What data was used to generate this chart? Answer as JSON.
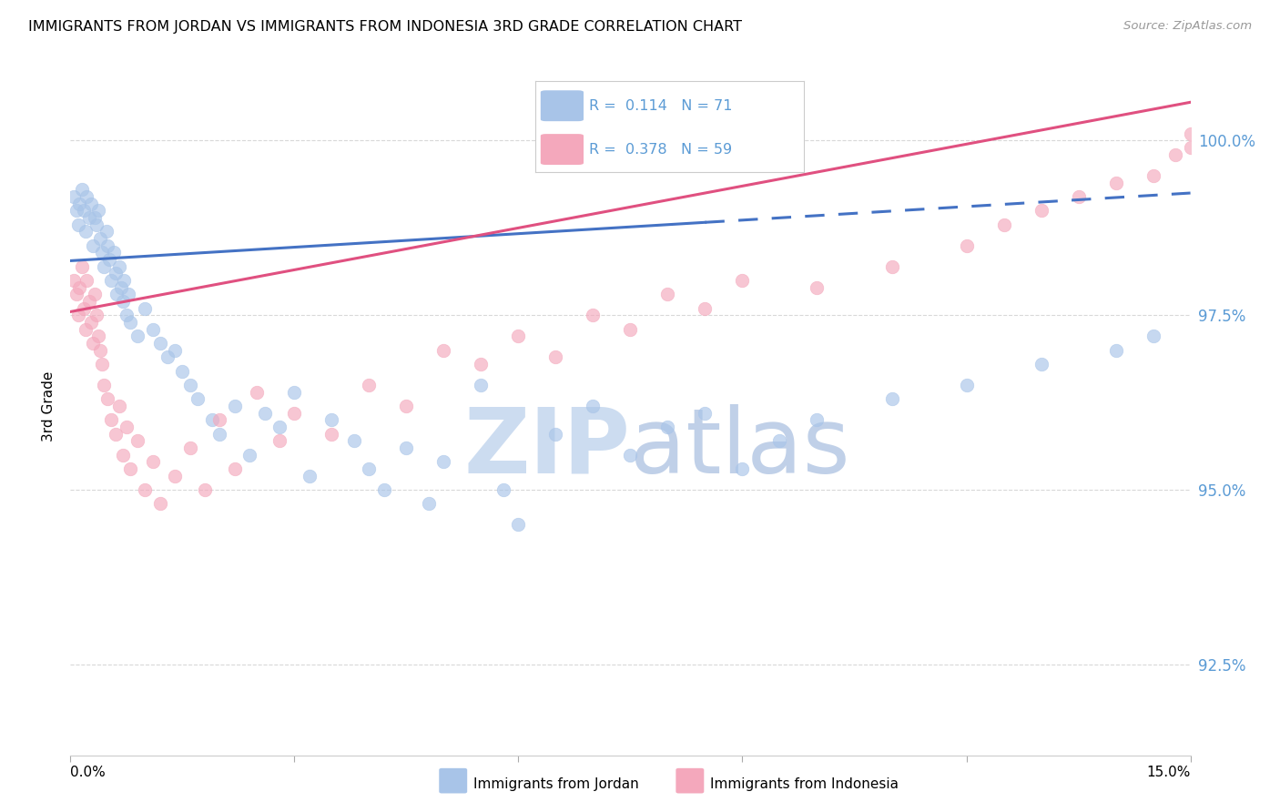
{
  "title": "IMMIGRANTS FROM JORDAN VS IMMIGRANTS FROM INDONESIA 3RD GRADE CORRELATION CHART",
  "source": "Source: ZipAtlas.com",
  "ylabel": "3rd Grade",
  "yaxis_values": [
    92.5,
    95.0,
    97.5,
    100.0
  ],
  "xlim": [
    0.0,
    15.0
  ],
  "ylim": [
    91.2,
    101.2
  ],
  "color_jordan": "#a8c4e8",
  "color_indonesia": "#f4a8bc",
  "color_jordan_line": "#4472c4",
  "color_indonesia_line": "#e05080",
  "watermark_zip_color": "#ccdcf0",
  "watermark_atlas_color": "#c0d0e8",
  "tick_color": "#5b9bd5",
  "grid_color": "#d8d8d8",
  "fig_bg": "#ffffff",
  "jordan_x": [
    0.05,
    0.08,
    0.1,
    0.12,
    0.15,
    0.18,
    0.2,
    0.22,
    0.25,
    0.28,
    0.3,
    0.32,
    0.35,
    0.38,
    0.4,
    0.42,
    0.45,
    0.48,
    0.5,
    0.52,
    0.55,
    0.58,
    0.6,
    0.62,
    0.65,
    0.68,
    0.7,
    0.72,
    0.75,
    0.78,
    0.8,
    0.9,
    1.0,
    1.1,
    1.2,
    1.3,
    1.4,
    1.5,
    1.6,
    1.7,
    1.9,
    2.0,
    2.2,
    2.4,
    2.6,
    2.8,
    3.0,
    3.2,
    3.5,
    3.8,
    4.0,
    4.2,
    4.5,
    4.8,
    5.0,
    5.5,
    5.8,
    6.0,
    6.5,
    7.0,
    7.5,
    8.0,
    8.5,
    9.0,
    9.5,
    10.0,
    11.0,
    12.0,
    13.0,
    14.0,
    14.5
  ],
  "jordan_y": [
    99.2,
    99.0,
    98.8,
    99.1,
    99.3,
    99.0,
    98.7,
    99.2,
    98.9,
    99.1,
    98.5,
    98.9,
    98.8,
    99.0,
    98.6,
    98.4,
    98.2,
    98.7,
    98.5,
    98.3,
    98.0,
    98.4,
    98.1,
    97.8,
    98.2,
    97.9,
    97.7,
    98.0,
    97.5,
    97.8,
    97.4,
    97.2,
    97.6,
    97.3,
    97.1,
    96.9,
    97.0,
    96.7,
    96.5,
    96.3,
    96.0,
    95.8,
    96.2,
    95.5,
    96.1,
    95.9,
    96.4,
    95.2,
    96.0,
    95.7,
    95.3,
    95.0,
    95.6,
    94.8,
    95.4,
    96.5,
    95.0,
    94.5,
    95.8,
    96.2,
    95.5,
    95.9,
    96.1,
    95.3,
    95.7,
    96.0,
    96.3,
    96.5,
    96.8,
    97.0,
    97.2
  ],
  "indonesia_x": [
    0.05,
    0.08,
    0.1,
    0.12,
    0.15,
    0.18,
    0.2,
    0.22,
    0.25,
    0.28,
    0.3,
    0.32,
    0.35,
    0.38,
    0.4,
    0.42,
    0.45,
    0.5,
    0.55,
    0.6,
    0.65,
    0.7,
    0.75,
    0.8,
    0.9,
    1.0,
    1.1,
    1.2,
    1.4,
    1.6,
    1.8,
    2.0,
    2.2,
    2.5,
    2.8,
    3.0,
    3.5,
    4.0,
    4.5,
    5.0,
    5.5,
    6.0,
    6.5,
    7.0,
    7.5,
    8.0,
    8.5,
    9.0,
    10.0,
    11.0,
    12.0,
    12.5,
    13.0,
    13.5,
    14.0,
    14.5,
    14.8,
    15.0,
    15.0
  ],
  "indonesia_y": [
    98.0,
    97.8,
    97.5,
    97.9,
    98.2,
    97.6,
    97.3,
    98.0,
    97.7,
    97.4,
    97.1,
    97.8,
    97.5,
    97.2,
    97.0,
    96.8,
    96.5,
    96.3,
    96.0,
    95.8,
    96.2,
    95.5,
    95.9,
    95.3,
    95.7,
    95.0,
    95.4,
    94.8,
    95.2,
    95.6,
    95.0,
    96.0,
    95.3,
    96.4,
    95.7,
    96.1,
    95.8,
    96.5,
    96.2,
    97.0,
    96.8,
    97.2,
    96.9,
    97.5,
    97.3,
    97.8,
    97.6,
    98.0,
    97.9,
    98.2,
    98.5,
    98.8,
    99.0,
    99.2,
    99.4,
    99.5,
    99.8,
    100.1,
    99.9
  ],
  "jordan_line_x0": 0.0,
  "jordan_line_y0": 98.28,
  "jordan_line_x1": 15.0,
  "jordan_line_y1": 99.25,
  "jordan_solid_end": 8.5,
  "indonesia_line_x0": 0.0,
  "indonesia_line_y0": 97.55,
  "indonesia_line_x1": 15.0,
  "indonesia_line_y1": 100.55,
  "legend_r1_text": "R =  0.114   N = 71",
  "legend_r2_text": "R =  0.378   N = 59"
}
